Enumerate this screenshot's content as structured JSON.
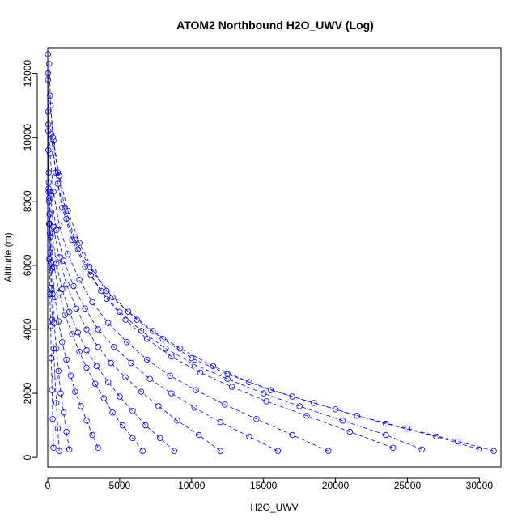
{
  "chart_data": {
    "type": "scatter",
    "title": "ATOM2 Northbound H2O_UWV (Log)",
    "xlabel": "H2O_UWV",
    "ylabel": "Altitude (m)",
    "xlim": [
      0,
      31500
    ],
    "ylim": [
      -300,
      12800
    ],
    "xticks": [
      0,
      5000,
      10000,
      15000,
      20000,
      25000,
      30000
    ],
    "yticks": [
      0,
      2000,
      4000,
      6000,
      8000,
      10000,
      12000
    ],
    "point_style": "open-circle",
    "line_style": "dashed",
    "series_color": "#0000ff",
    "series": [
      {
        "x": [
          31000,
          28500,
          25000,
          21500,
          18500,
          15500,
          12500,
          10000,
          8000,
          6200,
          4500,
          3200,
          2200,
          1400,
          800,
          400,
          200,
          100
        ],
        "y": [
          200,
          500,
          900,
          1300,
          1700,
          2100,
          2600,
          3100,
          3700,
          4300,
          5000,
          5800,
          6700,
          7700,
          8800,
          9900,
          11000,
          12300
        ]
      },
      {
        "x": [
          30000,
          27000,
          23500,
          20000,
          17000,
          14000,
          11500,
          9200,
          7300,
          5600,
          4100,
          2900,
          1900,
          1200,
          700,
          350,
          150
        ],
        "y": [
          250,
          650,
          1050,
          1500,
          1900,
          2350,
          2850,
          3400,
          3950,
          4550,
          5200,
          5950,
          6800,
          7800,
          8900,
          10000,
          11300
        ]
      },
      {
        "x": [
          26000,
          23500,
          20500,
          17500,
          15000,
          12500,
          10200,
          8200,
          6500,
          5000,
          3700,
          2600,
          1700,
          1000,
          550,
          250
        ],
        "y": [
          250,
          700,
          1150,
          1600,
          2000,
          2450,
          2900,
          3400,
          3950,
          4550,
          5200,
          5950,
          6800,
          7800,
          8900,
          10100
        ]
      },
      {
        "x": [
          24000,
          21000,
          18000,
          15200,
          12800,
          10600,
          8600,
          6900,
          5400,
          4100,
          3000,
          2100,
          1300,
          700,
          300
        ],
        "y": [
          300,
          800,
          1300,
          1750,
          2200,
          2650,
          3150,
          3700,
          4300,
          4950,
          5700,
          6500,
          7450,
          8550,
          9800
        ]
      },
      {
        "x": [
          19500,
          17000,
          14500,
          12300,
          10300,
          8500,
          6900,
          5500,
          4200,
          3100,
          2200,
          1400,
          800,
          400,
          150
        ],
        "y": [
          200,
          700,
          1200,
          1650,
          2100,
          2550,
          3050,
          3600,
          4200,
          4850,
          5550,
          6350,
          7250,
          8300,
          9500
        ]
      },
      {
        "x": [
          16000,
          14000,
          12000,
          10200,
          8600,
          7100,
          5800,
          4600,
          3500,
          2600,
          1800,
          1100,
          600,
          250
        ],
        "y": [
          200,
          650,
          1100,
          1550,
          2000,
          2450,
          2950,
          3450,
          4000,
          4650,
          5350,
          6150,
          7100,
          8200
        ]
      },
      {
        "x": [
          12000,
          10500,
          9000,
          7700,
          6500,
          5400,
          4400,
          3500,
          2700,
          2000,
          1300,
          800,
          400,
          150
        ],
        "y": [
          200,
          700,
          1150,
          1600,
          2050,
          2500,
          2950,
          3450,
          4000,
          4650,
          5400,
          6250,
          7200,
          8300
        ]
      },
      {
        "x": [
          8800,
          7800,
          6800,
          5900,
          5000,
          4200,
          3400,
          2700,
          2100,
          1500,
          1000,
          600,
          300,
          100
        ],
        "y": [
          200,
          600,
          1000,
          1450,
          1900,
          2350,
          2850,
          3350,
          3900,
          4550,
          5250,
          6050,
          7000,
          8100
        ]
      },
      {
        "x": [
          6600,
          5900,
          5200,
          4500,
          3900,
          3300,
          2700,
          2200,
          1700,
          1200,
          800,
          450,
          200,
          80
        ],
        "y": [
          200,
          600,
          1000,
          1400,
          1850,
          2300,
          2800,
          3300,
          3850,
          4450,
          5150,
          5950,
          6900,
          8000
        ]
      },
      {
        "x": [
          3500,
          3100,
          2700,
          2300,
          1900,
          1600,
          1300,
          1000,
          750,
          500,
          300,
          150,
          60
        ],
        "y": [
          300,
          700,
          1150,
          1600,
          2050,
          2550,
          3050,
          3600,
          4250,
          5000,
          5900,
          7000,
          8300
        ]
      },
      {
        "x": [
          1500,
          1300,
          1100,
          900,
          750,
          600,
          450,
          330,
          220,
          130,
          70,
          40
        ],
        "y": [
          250,
          800,
          1400,
          2000,
          2700,
          3400,
          4200,
          5100,
          6100,
          7300,
          8600,
          10200
        ]
      },
      {
        "x": [
          800,
          700,
          600,
          500,
          400,
          320,
          240,
          170,
          110,
          70,
          40,
          20
        ],
        "y": [
          200,
          900,
          1700,
          2500,
          3400,
          4300,
          5300,
          6400,
          7600,
          8900,
          10400,
          12000
        ]
      },
      {
        "x": [
          400,
          350,
          300,
          250,
          200,
          160,
          120,
          90,
          60,
          40,
          25,
          15,
          10
        ],
        "y": [
          300,
          1200,
          2100,
          3100,
          4100,
          5100,
          6200,
          7300,
          8400,
          9600,
          10800,
          11800,
          12600
        ]
      }
    ]
  }
}
